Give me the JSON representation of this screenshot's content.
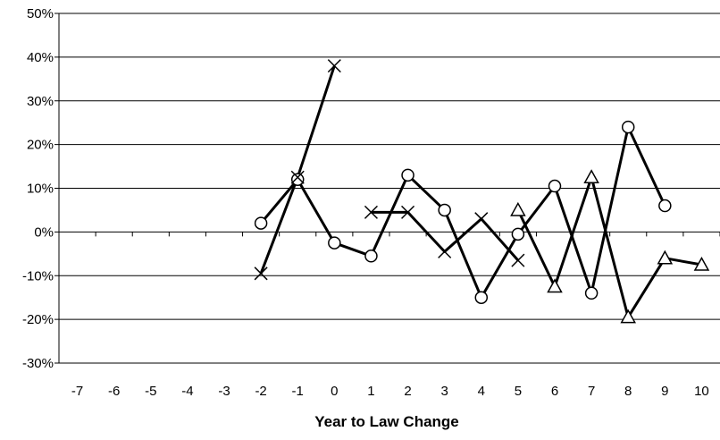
{
  "chart_data": {
    "type": "line",
    "title": "",
    "xlabel": "Year to Law Change",
    "ylabel": "",
    "x_ticks": [
      "-7",
      "-6",
      "-5",
      "-4",
      "-3",
      "-2",
      "-1",
      "0",
      "1",
      "2",
      "3",
      "4",
      "5",
      "6",
      "7",
      "8",
      "9",
      "10"
    ],
    "xlim": [
      -7.5,
      10.5
    ],
    "ylim": [
      -30,
      50
    ],
    "y_ticks": [
      -30,
      -20,
      -10,
      0,
      10,
      20,
      30,
      40,
      50
    ],
    "y_tick_labels": [
      "-30%",
      "-20%",
      "-10%",
      "0%",
      "10%",
      "20%",
      "30%",
      "40%",
      "50%"
    ],
    "grid": "horizontal",
    "legend": "none",
    "series": [
      {
        "marker": "circle",
        "color": "#000000",
        "points": [
          [
            -2,
            2
          ],
          [
            -1,
            12
          ],
          [
            0,
            -2.5
          ],
          [
            1,
            -5.5
          ],
          [
            2,
            13
          ],
          [
            3,
            5
          ],
          [
            4,
            -15
          ],
          [
            5,
            -0.5
          ],
          [
            6,
            10.5
          ],
          [
            7,
            -14
          ],
          [
            8,
            24
          ],
          [
            9,
            6
          ]
        ],
        "segments": [
          [
            0,
            11
          ]
        ]
      },
      {
        "marker": "x",
        "color": "#000000",
        "points": [
          [
            -2,
            -9.5
          ],
          [
            -1,
            12.5
          ],
          [
            0,
            38
          ],
          [
            1,
            4.5
          ],
          [
            2,
            4.5
          ],
          [
            3,
            -4.5
          ],
          [
            4,
            3
          ],
          [
            5,
            -6.5
          ]
        ],
        "segments": [
          [
            0,
            2
          ],
          [
            3,
            7
          ]
        ]
      },
      {
        "marker": "triangle",
        "color": "#000000",
        "points": [
          [
            5,
            5
          ],
          [
            6,
            -12.5
          ],
          [
            7,
            12.5
          ],
          [
            8,
            -19.5
          ],
          [
            9,
            -6
          ],
          [
            10,
            -7.5
          ]
        ],
        "segments": [
          [
            0,
            5
          ]
        ]
      }
    ]
  }
}
